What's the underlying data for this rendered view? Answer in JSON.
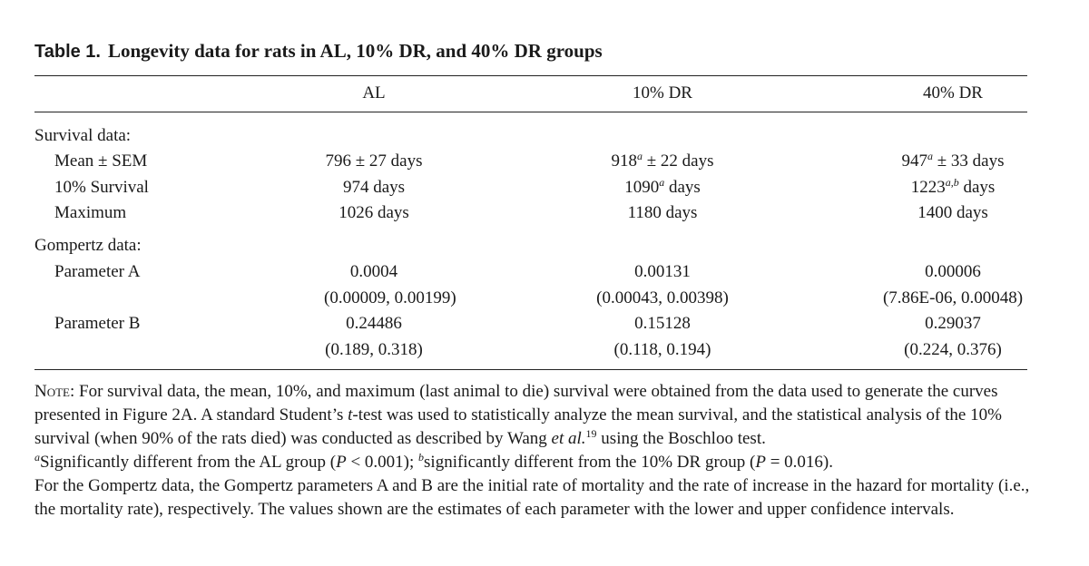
{
  "table": {
    "label": "Table 1.",
    "title": "Longevity data for rats in AL, 10% DR, and 40% DR groups",
    "columns": [
      "AL",
      "10% DR",
      "40% DR"
    ],
    "sections": [
      {
        "heading": "Survival data:",
        "rows": [
          {
            "label": "Mean ± SEM",
            "values": [
              {
                "main": "796 ± 27 days"
              },
              {
                "pre": "918",
                "sup": "a",
                "post": " ± 22 days"
              },
              {
                "pre": "947",
                "sup": "a",
                "post": " ± 33 days"
              }
            ]
          },
          {
            "label": "10% Survival",
            "values": [
              {
                "main": "974 days"
              },
              {
                "pre": "1090",
                "sup": "a",
                "post": " days"
              },
              {
                "pre": "1223",
                "sup": "a,b",
                "post": " days"
              }
            ]
          },
          {
            "label": "Maximum",
            "values": [
              {
                "main": "1026 days"
              },
              {
                "main": "1180 days"
              },
              {
                "main": "1400 days"
              }
            ]
          }
        ]
      },
      {
        "heading": "Gompertz data:",
        "rows": [
          {
            "label": "Parameter A",
            "values": [
              {
                "main": "0.0004",
                "ci": "(0.00009, 0.00199)"
              },
              {
                "main": "0.00131",
                "ci": "(0.00043, 0.00398)"
              },
              {
                "main": "0.00006",
                "ci": "(7.86E-06, 0.00048)"
              }
            ]
          },
          {
            "label": "Parameter B",
            "values": [
              {
                "main": "0.24486",
                "ci": "(0.189, 0.318)"
              },
              {
                "main": "0.15128",
                "ci": "(0.118, 0.194)"
              },
              {
                "main": "0.29037",
                "ci": "(0.224, 0.376)"
              }
            ]
          }
        ]
      }
    ]
  },
  "note": {
    "label": "Note:",
    "p1a": " For survival data, the mean, 10%, and maximum (last animal to die) survival were obtained from the data used to generate the curves presented in Figure 2A. A standard Student’s ",
    "t": "t",
    "p1b": "-test was used to statistically analyze the mean survival, and the statistical analysis of the 10% survival (when 90% of the rats died) was conducted as described by Wang ",
    "etal": "et al.",
    "ref": "19",
    "p1c": " using the Boschloo test.",
    "fa": "a",
    "p2a": "Significantly different from the AL group (",
    "P1": "P",
    "p2b": " < 0.001); ",
    "fb": "b",
    "p2c": "significantly different from the 10% DR group (",
    "P2": "P",
    "p2d": " = 0.016).",
    "p3": "For the Gompertz data, the Gompertz parameters A and B are the initial rate of mortality and the rate of increase in the hazard for mortality (i.e., the mortality rate), respectively. The values shown are the estimates of each parameter with the lower and upper confidence intervals."
  }
}
